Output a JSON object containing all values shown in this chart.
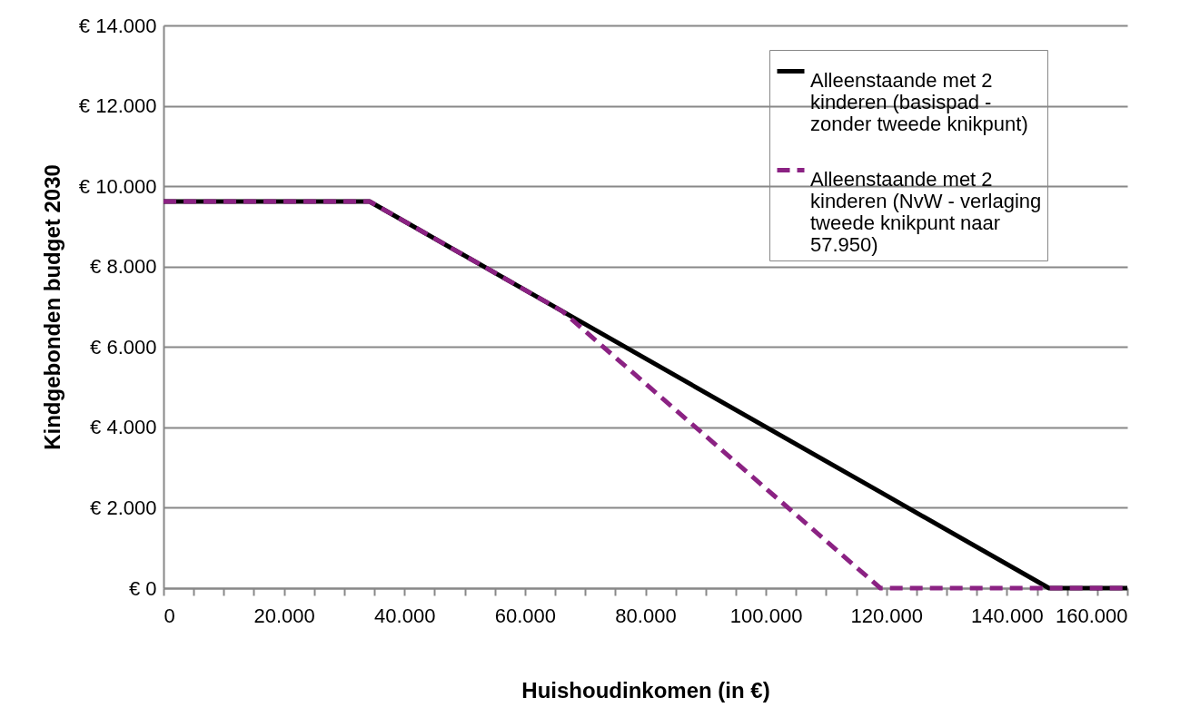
{
  "chart_data": {
    "type": "line",
    "xlabel": "Huishoudinkomen (in €)",
    "ylabel": "Kindgebonden budget 2030",
    "x": [
      0,
      34200,
      66200,
      119000,
      147000,
      160000
    ],
    "series": [
      {
        "name": "Alleenstaande met 2 kinderen (basispad - zonder tweede knikpunt)",
        "color": "#000000",
        "line_style": "solid",
        "values": [
          9620,
          9620,
          6890,
          2390,
          0,
          0
        ]
      },
      {
        "name": "Alleenstaande met 2 kinderen (NvW - verlaging tweede knikpunt naar 57.950)",
        "color": "#8b2283",
        "line_style": "dashed",
        "values": [
          9620,
          9620,
          6890,
          0,
          0,
          0
        ]
      }
    ],
    "xlim": [
      0,
      160000
    ],
    "xticks": [
      {
        "value": 0,
        "label": "0"
      },
      {
        "value": 5000,
        "label": null
      },
      {
        "value": 10000,
        "label": null
      },
      {
        "value": 15000,
        "label": null
      },
      {
        "value": 20000,
        "label": "20.000"
      },
      {
        "value": 25000,
        "label": null
      },
      {
        "value": 30000,
        "label": null
      },
      {
        "value": 35000,
        "label": null
      },
      {
        "value": 40000,
        "label": "40.000"
      },
      {
        "value": 45000,
        "label": null
      },
      {
        "value": 50000,
        "label": null
      },
      {
        "value": 55000,
        "label": null
      },
      {
        "value": 60000,
        "label": "60.000"
      },
      {
        "value": 65000,
        "label": null
      },
      {
        "value": 70000,
        "label": null
      },
      {
        "value": 75000,
        "label": null
      },
      {
        "value": 80000,
        "label": "80.000"
      },
      {
        "value": 85000,
        "label": null
      },
      {
        "value": 90000,
        "label": null
      },
      {
        "value": 95000,
        "label": null
      },
      {
        "value": 100000,
        "label": "100.000"
      },
      {
        "value": 105000,
        "label": null
      },
      {
        "value": 110000,
        "label": null
      },
      {
        "value": 115000,
        "label": null
      },
      {
        "value": 120000,
        "label": "120.000"
      },
      {
        "value": 125000,
        "label": null
      },
      {
        "value": 130000,
        "label": null
      },
      {
        "value": 135000,
        "label": null
      },
      {
        "value": 140000,
        "label": "140.000"
      },
      {
        "value": 145000,
        "label": null
      },
      {
        "value": 150000,
        "label": null
      },
      {
        "value": 155000,
        "label": null
      },
      {
        "value": 160000,
        "label": "160.000"
      }
    ],
    "ylim": [
      0,
      14000
    ],
    "yticks": [
      {
        "value": 0,
        "label": "€ 0"
      },
      {
        "value": 2000,
        "label": "€ 2.000"
      },
      {
        "value": 4000,
        "label": "€ 4.000"
      },
      {
        "value": 6000,
        "label": "€ 6.000"
      },
      {
        "value": 8000,
        "label": "€ 8.000"
      },
      {
        "value": 10000,
        "label": "€ 10.000"
      },
      {
        "value": 12000,
        "label": "€ 12.000"
      },
      {
        "value": 14000,
        "label": "€ 14.000"
      }
    ],
    "grid": "y",
    "legend": "top right"
  }
}
